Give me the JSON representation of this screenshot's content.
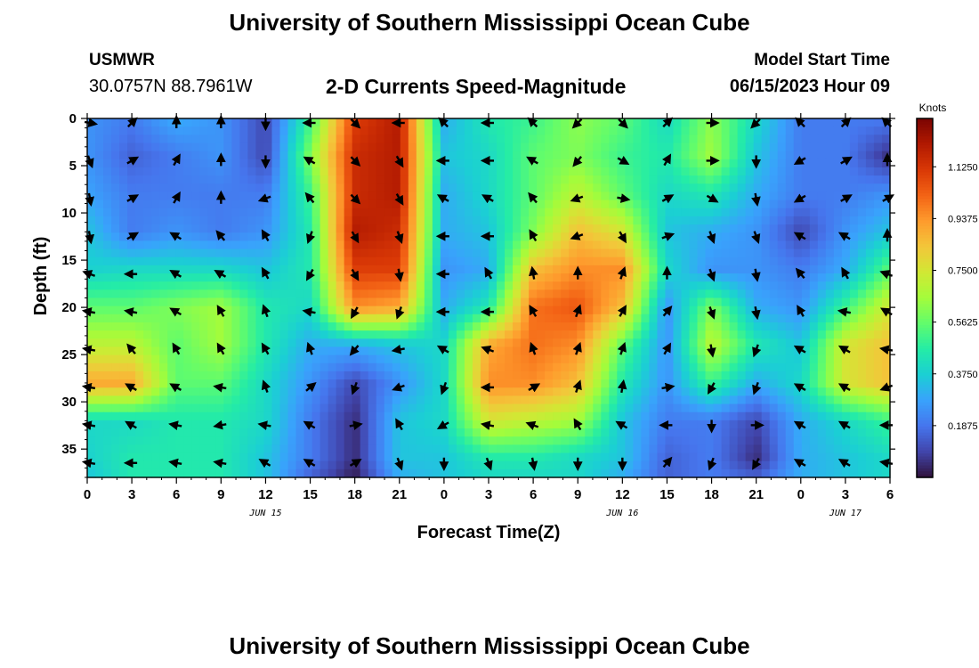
{
  "header": {
    "title": "University of Southern Mississippi Ocean Cube",
    "station": "USMWR",
    "coords": "30.0757N  88.7961W",
    "subtitle": "2-D Currents Speed-Magnitude",
    "model_start_label": "Model Start Time",
    "model_start_value": "06/15/2023 Hour 09"
  },
  "footer": {
    "title": "University of Southern Mississippi Ocean Cube"
  },
  "colorbar": {
    "label": "Knots",
    "ticks": [
      "1.1250",
      "0.9375",
      "0.7500",
      "0.5625",
      "0.3750",
      "0.1875"
    ],
    "tick_values": [
      1.125,
      0.9375,
      0.75,
      0.5625,
      0.375,
      0.1875
    ],
    "range": [
      0,
      1.3
    ],
    "colors": [
      "#30123b",
      "#4145ab",
      "#4675ed",
      "#39a2fc",
      "#1bcfd4",
      "#24eca6",
      "#61fc6c",
      "#a4fc3b",
      "#d1e834",
      "#f3c63a",
      "#fe9b2d",
      "#f36315",
      "#d93806",
      "#b11901",
      "#7a0402"
    ]
  },
  "chart_data": {
    "type": "heatmap",
    "xlabel": "Forecast Time(Z)",
    "ylabel": "Depth (ft)",
    "x_tick_labels": [
      "0",
      "3",
      "6",
      "9",
      "12",
      "15",
      "18",
      "21",
      "0",
      "3",
      "6",
      "9",
      "12",
      "15",
      "18",
      "21",
      "0",
      "3",
      "6"
    ],
    "x_hours": [
      0,
      3,
      6,
      9,
      12,
      15,
      18,
      21,
      24,
      27,
      30,
      33,
      36,
      39,
      42,
      45,
      48,
      51,
      54
    ],
    "xlim": [
      0,
      54
    ],
    "date_labels": [
      {
        "text": "JUN 15",
        "hour": 12
      },
      {
        "text": "JUN 16",
        "hour": 36
      },
      {
        "text": "JUN 17",
        "hour": 51
      }
    ],
    "y_tick_labels": [
      "0",
      "5",
      "10",
      "15",
      "20",
      "25",
      "30",
      "35"
    ],
    "y_values": [
      0,
      5,
      10,
      15,
      20,
      25,
      30,
      35
    ],
    "ylim": [
      0,
      38
    ],
    "y_inverted": true,
    "units": "Knots",
    "value_range": [
      0,
      1.3
    ],
    "grid_hours": [
      0,
      3,
      6,
      9,
      12,
      15,
      18,
      21,
      24,
      27,
      30,
      33,
      36,
      39,
      42,
      45,
      48,
      51,
      54
    ],
    "grid_depths": [
      0,
      4,
      8,
      12,
      16,
      20,
      24,
      28,
      32,
      36,
      38
    ],
    "speed": [
      [
        0.25,
        0.2,
        0.3,
        0.25,
        0.1,
        0.5,
        1.1,
        1.2,
        0.3,
        0.45,
        0.5,
        0.62,
        0.55,
        0.4,
        0.62,
        0.4,
        0.2,
        0.2,
        0.2
      ],
      [
        0.25,
        0.15,
        0.2,
        0.25,
        0.1,
        0.6,
        1.15,
        1.2,
        0.35,
        0.4,
        0.55,
        0.6,
        0.5,
        0.45,
        0.65,
        0.35,
        0.2,
        0.2,
        0.05
      ],
      [
        0.28,
        0.2,
        0.2,
        0.2,
        0.2,
        0.5,
        1.15,
        1.2,
        0.3,
        0.4,
        0.55,
        0.7,
        0.55,
        0.4,
        0.45,
        0.3,
        0.2,
        0.2,
        0.25
      ],
      [
        0.35,
        0.2,
        0.25,
        0.2,
        0.25,
        0.45,
        1.2,
        1.15,
        0.3,
        0.35,
        0.6,
        0.85,
        0.75,
        0.35,
        0.3,
        0.25,
        0.1,
        0.25,
        0.35
      ],
      [
        0.38,
        0.4,
        0.4,
        0.4,
        0.35,
        0.45,
        1.1,
        1.1,
        0.25,
        0.3,
        0.85,
        0.95,
        0.95,
        0.4,
        0.25,
        0.25,
        0.2,
        0.3,
        0.55
      ],
      [
        0.55,
        0.55,
        0.6,
        0.65,
        0.45,
        0.4,
        0.95,
        0.9,
        0.3,
        0.45,
        1.0,
        1.05,
        0.85,
        0.25,
        0.6,
        0.3,
        0.25,
        0.5,
        0.75
      ],
      [
        0.7,
        0.7,
        0.55,
        0.65,
        0.45,
        0.3,
        0.3,
        0.35,
        0.4,
        0.9,
        1.0,
        0.95,
        0.55,
        0.25,
        0.7,
        0.45,
        0.35,
        0.75,
        0.85
      ],
      [
        0.9,
        0.9,
        0.55,
        0.55,
        0.4,
        0.25,
        0.1,
        0.25,
        0.4,
        0.95,
        0.95,
        0.85,
        0.45,
        0.25,
        0.5,
        0.3,
        0.4,
        0.75,
        0.85
      ],
      [
        0.4,
        0.4,
        0.45,
        0.45,
        0.4,
        0.2,
        0.05,
        0.35,
        0.4,
        0.75,
        0.7,
        0.65,
        0.35,
        0.2,
        0.2,
        0.1,
        0.3,
        0.4,
        0.5
      ],
      [
        0.38,
        0.45,
        0.45,
        0.45,
        0.35,
        0.2,
        0.05,
        0.35,
        0.35,
        0.45,
        0.45,
        0.4,
        0.35,
        0.15,
        0.2,
        0.05,
        0.3,
        0.35,
        0.4
      ],
      [
        0.35,
        0.45,
        0.45,
        0.45,
        0.35,
        0.15,
        0.02,
        0.3,
        0.35,
        0.4,
        0.4,
        0.4,
        0.3,
        0.15,
        0.2,
        0.15,
        0.3,
        0.35,
        0.4
      ]
    ],
    "arrow_hours": [
      0,
      3,
      6,
      9,
      12,
      15,
      18,
      21,
      24,
      27,
      30,
      33,
      36,
      39,
      42,
      45,
      48,
      51,
      54
    ],
    "arrow_depths": [
      0,
      4,
      8,
      12,
      16,
      20,
      24,
      28,
      32,
      36
    ],
    "arrow_directions_deg": [
      [
        100,
        45,
        0,
        0,
        180,
        270,
        135,
        270,
        315,
        270,
        315,
        225,
        135,
        45,
        90,
        225,
        315,
        45,
        315
      ],
      [
        160,
        60,
        30,
        0,
        180,
        300,
        135,
        150,
        270,
        270,
        300,
        220,
        120,
        30,
        90,
        180,
        240,
        60,
        0
      ],
      [
        170,
        60,
        30,
        0,
        250,
        320,
        135,
        150,
        300,
        300,
        320,
        250,
        100,
        60,
        120,
        170,
        240,
        60,
        60
      ],
      [
        170,
        60,
        300,
        320,
        330,
        200,
        150,
        160,
        270,
        270,
        330,
        250,
        150,
        70,
        160,
        160,
        300,
        300,
        0
      ],
      [
        290,
        270,
        300,
        300,
        330,
        210,
        150,
        170,
        270,
        330,
        350,
        0,
        20,
        0,
        160,
        170,
        320,
        330,
        290
      ],
      [
        280,
        280,
        300,
        330,
        340,
        280,
        210,
        200,
        270,
        270,
        330,
        20,
        30,
        40,
        160,
        170,
        330,
        280,
        300
      ],
      [
        280,
        320,
        330,
        330,
        330,
        340,
        220,
        260,
        300,
        290,
        340,
        20,
        20,
        30,
        170,
        200,
        300,
        300,
        280
      ],
      [
        280,
        300,
        300,
        280,
        340,
        50,
        200,
        250,
        200,
        270,
        60,
        20,
        10,
        80,
        210,
        200,
        300,
        300,
        250
      ],
      [
        280,
        300,
        280,
        260,
        280,
        300,
        80,
        330,
        240,
        280,
        290,
        330,
        300,
        270,
        180,
        90,
        300,
        300,
        270
      ],
      [
        280,
        270,
        280,
        280,
        300,
        300,
        60,
        160,
        180,
        160,
        170,
        180,
        180,
        40,
        200,
        210,
        300,
        300,
        280
      ]
    ]
  }
}
